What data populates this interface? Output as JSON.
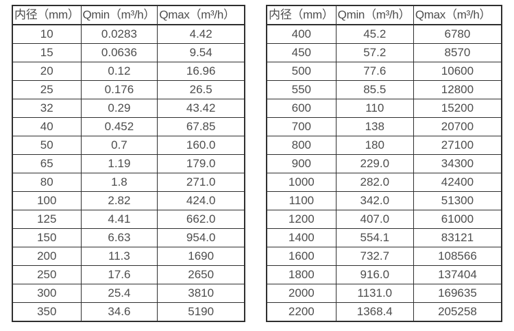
{
  "colors": {
    "background": "#ffffff",
    "border": "#2e2e2e",
    "text": "#4d4d4d"
  },
  "left_table": {
    "headers": [
      "内径（mm）",
      "Qmin（m³/h）",
      "Qmax（m³/h）"
    ],
    "rows": [
      [
        "10",
        "0.0283",
        "4.42"
      ],
      [
        "15",
        "0.0636",
        "9.54"
      ],
      [
        "20",
        "0.12",
        "16.96"
      ],
      [
        "25",
        "0.176",
        "26.5"
      ],
      [
        "32",
        "0.29",
        "43.42"
      ],
      [
        "40",
        "0.452",
        "67.85"
      ],
      [
        "50",
        "0.7",
        "160.0"
      ],
      [
        "65",
        "1.19",
        "179.0"
      ],
      [
        "80",
        "1.8",
        "271.0"
      ],
      [
        "100",
        "2.82",
        "424.0"
      ],
      [
        "125",
        "4.41",
        "662.0"
      ],
      [
        "150",
        "6.63",
        "954.0"
      ],
      [
        "200",
        "11.3",
        "1690"
      ],
      [
        "250",
        "17.6",
        "2650"
      ],
      [
        "300",
        "25.4",
        "3810"
      ],
      [
        "350",
        "34.6",
        "5190"
      ]
    ]
  },
  "right_table": {
    "headers": [
      "内径（mm）",
      "Qmin（m³/h）",
      "Qmax（m³/h）"
    ],
    "rows": [
      [
        "400",
        "45.2",
        "6780"
      ],
      [
        "450",
        "57.2",
        "8570"
      ],
      [
        "500",
        "77.6",
        "10600"
      ],
      [
        "550",
        "85.5",
        "12800"
      ],
      [
        "600",
        "110",
        "15200"
      ],
      [
        "700",
        "138",
        "20700"
      ],
      [
        "800",
        "180",
        "27100"
      ],
      [
        "900",
        "229.0",
        "34300"
      ],
      [
        "1000",
        "282.0",
        "42400"
      ],
      [
        "1100",
        "342.0",
        "51300"
      ],
      [
        "1200",
        "407.0",
        "61000"
      ],
      [
        "1400",
        "554.1",
        "83121"
      ],
      [
        "1600",
        "732.7",
        "108566"
      ],
      [
        "1800",
        "916.0",
        "137404"
      ],
      [
        "2000",
        "1131.0",
        "169635"
      ],
      [
        "2200",
        "1368.4",
        "205258"
      ]
    ]
  }
}
